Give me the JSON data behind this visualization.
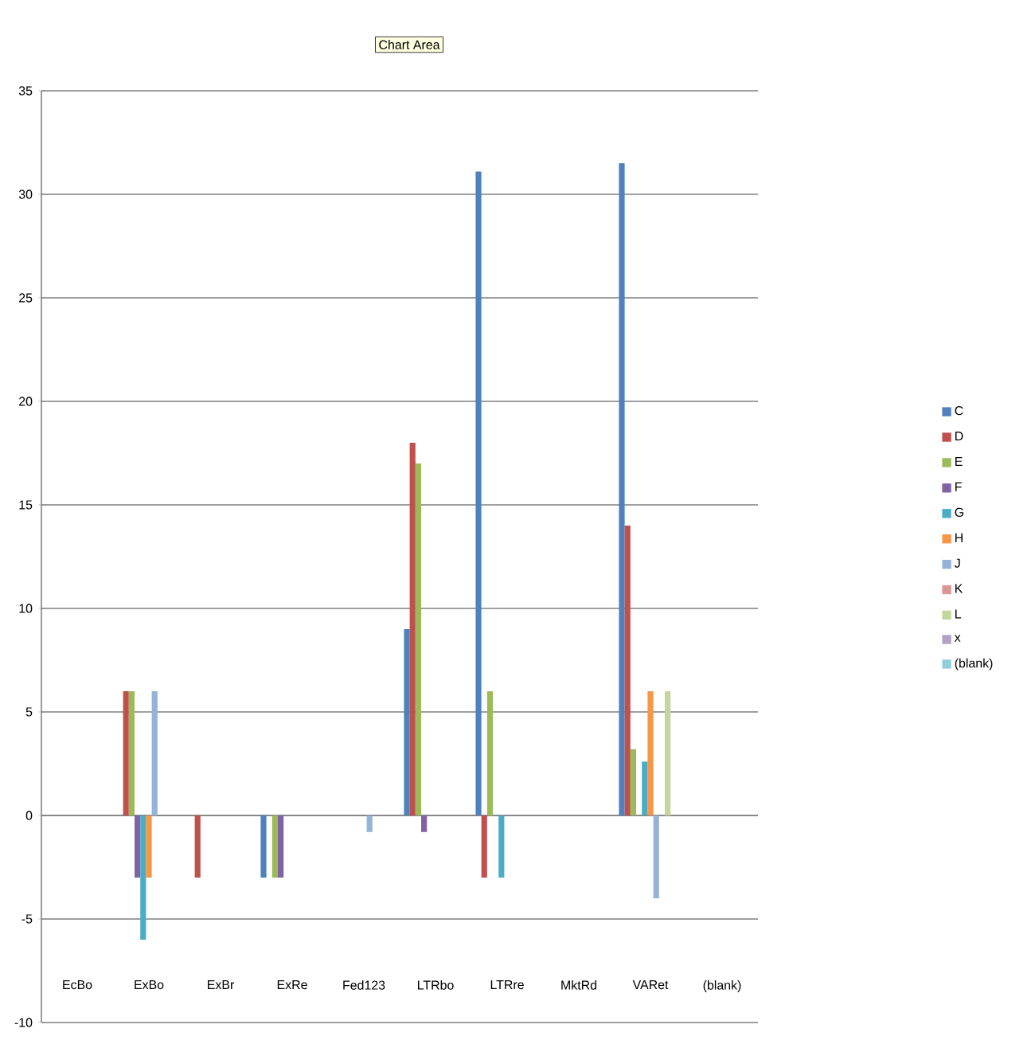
{
  "chart_data": {
    "type": "bar",
    "categories": [
      "EcBo",
      "ExBo",
      "ExBr",
      "ExRe",
      "Fed123",
      "LTRbo",
      "LTRre",
      "MktRd",
      "VARet",
      "(blank)"
    ],
    "series": [
      {
        "name": "C",
        "color": "#4f81bd",
        "values": [
          null,
          null,
          null,
          -3,
          null,
          9,
          31.1,
          null,
          31.5,
          null
        ]
      },
      {
        "name": "D",
        "color": "#c0504d",
        "values": [
          null,
          6,
          -3,
          null,
          null,
          18,
          -3,
          null,
          14,
          null
        ]
      },
      {
        "name": "E",
        "color": "#9bbb59",
        "values": [
          null,
          6,
          null,
          -3,
          null,
          17,
          6,
          null,
          3.2,
          null
        ]
      },
      {
        "name": "F",
        "color": "#8064a2",
        "values": [
          null,
          -3,
          null,
          -3,
          null,
          -0.8,
          null,
          null,
          null,
          null
        ]
      },
      {
        "name": "G",
        "color": "#4bacc6",
        "values": [
          null,
          -6,
          null,
          null,
          null,
          null,
          -3,
          null,
          2.6,
          null
        ]
      },
      {
        "name": "H",
        "color": "#f79646",
        "values": [
          null,
          -3,
          null,
          null,
          null,
          null,
          null,
          null,
          6,
          null
        ]
      },
      {
        "name": "J",
        "color": "#95b3d7",
        "values": [
          null,
          6,
          null,
          null,
          -0.8,
          null,
          null,
          null,
          -4,
          null
        ]
      },
      {
        "name": "K",
        "color": "#d99694",
        "values": [
          null,
          null,
          null,
          null,
          null,
          null,
          null,
          null,
          null,
          null
        ]
      },
      {
        "name": "L",
        "color": "#c3d69b",
        "values": [
          null,
          null,
          null,
          null,
          null,
          null,
          null,
          null,
          6,
          null
        ]
      },
      {
        "name": "x",
        "color": "#b2a2c7",
        "values": [
          null,
          null,
          null,
          null,
          null,
          null,
          null,
          null,
          null,
          null
        ]
      },
      {
        "name": "(blank)",
        "color": "#92cddc",
        "values": [
          null,
          null,
          null,
          null,
          null,
          null,
          null,
          null,
          null,
          null
        ]
      }
    ],
    "ylim": [
      -10,
      35
    ],
    "yticks": [
      -10,
      -5,
      0,
      5,
      10,
      15,
      20,
      25,
      30,
      35
    ],
    "grid": "y",
    "legend": "right",
    "annotations": [
      "Chart Area"
    ]
  }
}
